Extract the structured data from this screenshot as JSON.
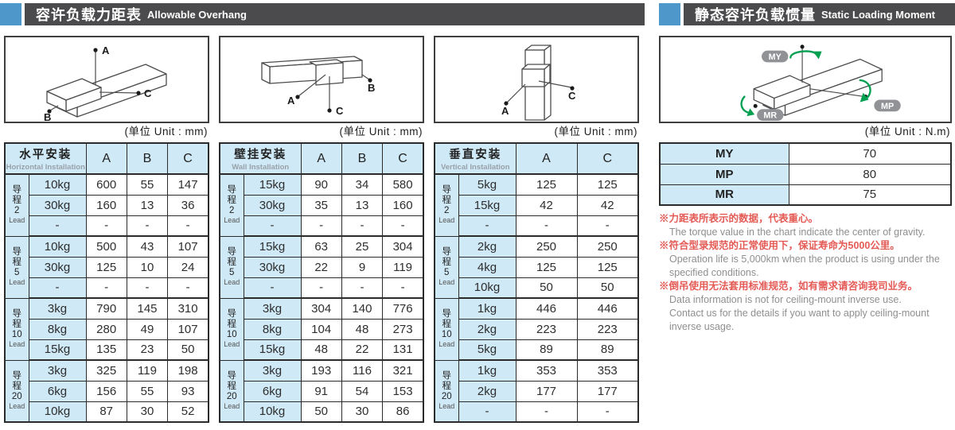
{
  "colors": {
    "accent": "#4e97cb",
    "bardark": "#4b4b4d",
    "tableblue": "#cfe9f6",
    "borderdark": "#2b2b2b",
    "notered": "#e45a55",
    "notegray": "#8f8f8f",
    "green": "#00a050",
    "badge": "#909295"
  },
  "left_header": {
    "zh": "容许负载力距表",
    "en": "Allowable Overhang"
  },
  "right_header": {
    "zh": "静态容许负载惯量",
    "en": "Static Loading Moment"
  },
  "unit_mm": "(单位 Unit : mm)",
  "unit_nm": "(单位 Unit : N.m)",
  "diagram_points": {
    "a": "A",
    "b": "B",
    "c": "C"
  },
  "moment_labels": {
    "my": "MY",
    "mp": "MP",
    "mr": "MR"
  },
  "overhang_tables": [
    {
      "key": "horizontal",
      "title_zh": "水平安装",
      "title_en": "Horizontal Installation",
      "columns": [
        "A",
        "B",
        "C"
      ],
      "groups": [
        {
          "zh_chars": [
            "导",
            "程"
          ],
          "num": "2",
          "en": "Lead",
          "rows": [
            {
              "load": "10kg",
              "values": [
                "600",
                "55",
                "147"
              ]
            },
            {
              "load": "30kg",
              "values": [
                "160",
                "13",
                "36"
              ]
            },
            {
              "load": "-",
              "values": [
                "-",
                "-",
                "-"
              ]
            }
          ]
        },
        {
          "zh_chars": [
            "导",
            "程"
          ],
          "num": "5",
          "en": "Lead",
          "rows": [
            {
              "load": "10kg",
              "values": [
                "500",
                "43",
                "107"
              ]
            },
            {
              "load": "30kg",
              "values": [
                "125",
                "10",
                "24"
              ]
            },
            {
              "load": "-",
              "values": [
                "-",
                "-",
                "-"
              ]
            }
          ]
        },
        {
          "zh_chars": [
            "导",
            "程"
          ],
          "num": "10",
          "en": "Lead",
          "rows": [
            {
              "load": "3kg",
              "values": [
                "790",
                "145",
                "310"
              ]
            },
            {
              "load": "8kg",
              "values": [
                "280",
                "49",
                "107"
              ]
            },
            {
              "load": "15kg",
              "values": [
                "135",
                "23",
                "50"
              ]
            }
          ]
        },
        {
          "zh_chars": [
            "导",
            "程"
          ],
          "num": "20",
          "en": "Lead",
          "rows": [
            {
              "load": "3kg",
              "values": [
                "325",
                "119",
                "198"
              ]
            },
            {
              "load": "6kg",
              "values": [
                "156",
                "55",
                "93"
              ]
            },
            {
              "load": "10kg",
              "values": [
                "87",
                "30",
                "52"
              ]
            }
          ]
        }
      ]
    },
    {
      "key": "wall",
      "title_zh": "壁挂安装",
      "title_en": "Wall Installation",
      "columns": [
        "A",
        "B",
        "C"
      ],
      "groups": [
        {
          "zh_chars": [
            "导",
            "程"
          ],
          "num": "2",
          "en": "Lead",
          "rows": [
            {
              "load": "15kg",
              "values": [
                "90",
                "34",
                "580"
              ]
            },
            {
              "load": "30kg",
              "values": [
                "35",
                "13",
                "160"
              ]
            },
            {
              "load": "-",
              "values": [
                "-",
                "-",
                "-"
              ]
            }
          ]
        },
        {
          "zh_chars": [
            "导",
            "程"
          ],
          "num": "5",
          "en": "Lead",
          "rows": [
            {
              "load": "15kg",
              "values": [
                "63",
                "25",
                "304"
              ]
            },
            {
              "load": "30kg",
              "values": [
                "22",
                "9",
                "119"
              ]
            },
            {
              "load": "-",
              "values": [
                "-",
                "-",
                "-"
              ]
            }
          ]
        },
        {
          "zh_chars": [
            "导",
            "程"
          ],
          "num": "10",
          "en": "Lead",
          "rows": [
            {
              "load": "3kg",
              "values": [
                "304",
                "140",
                "776"
              ]
            },
            {
              "load": "8kg",
              "values": [
                "104",
                "48",
                "273"
              ]
            },
            {
              "load": "15kg",
              "values": [
                "48",
                "22",
                "131"
              ]
            }
          ]
        },
        {
          "zh_chars": [
            "导",
            "程"
          ],
          "num": "20",
          "en": "Lead",
          "rows": [
            {
              "load": "3kg",
              "values": [
                "193",
                "116",
                "321"
              ]
            },
            {
              "load": "6kg",
              "values": [
                "91",
                "54",
                "153"
              ]
            },
            {
              "load": "10kg",
              "values": [
                "50",
                "30",
                "86"
              ]
            }
          ]
        }
      ]
    },
    {
      "key": "vertical",
      "title_zh": "垂直安装",
      "title_en": "Vertical Installation",
      "columns": [
        "A",
        "C"
      ],
      "groups": [
        {
          "zh_chars": [
            "导",
            "程"
          ],
          "num": "2",
          "en": "Lead",
          "rows": [
            {
              "load": "5kg",
              "values": [
                "125",
                "125"
              ]
            },
            {
              "load": "15kg",
              "values": [
                "42",
                "42"
              ]
            },
            {
              "load": "-",
              "values": [
                "-",
                "-"
              ]
            }
          ]
        },
        {
          "zh_chars": [
            "导",
            "程"
          ],
          "num": "5",
          "en": "Lead",
          "rows": [
            {
              "load": "2kg",
              "values": [
                "250",
                "250"
              ]
            },
            {
              "load": "4kg",
              "values": [
                "125",
                "125"
              ]
            },
            {
              "load": "10kg",
              "values": [
                "50",
                "50"
              ]
            }
          ]
        },
        {
          "zh_chars": [
            "导",
            "程"
          ],
          "num": "10",
          "en": "Lead",
          "rows": [
            {
              "load": "1kg",
              "values": [
                "446",
                "446"
              ]
            },
            {
              "load": "2kg",
              "values": [
                "223",
                "223"
              ]
            },
            {
              "load": "5kg",
              "values": [
                "89",
                "89"
              ]
            }
          ]
        },
        {
          "zh_chars": [
            "导",
            "程"
          ],
          "num": "20",
          "en": "Lead",
          "rows": [
            {
              "load": "1kg",
              "values": [
                "353",
                "353"
              ]
            },
            {
              "load": "2kg",
              "values": [
                "177",
                "177"
              ]
            },
            {
              "load": "-",
              "values": [
                "-",
                "-"
              ]
            }
          ]
        }
      ]
    }
  ],
  "moment_table": {
    "rows": [
      {
        "label": "MY",
        "value": "70"
      },
      {
        "label": "MP",
        "value": "80"
      },
      {
        "label": "MR",
        "value": "75"
      }
    ]
  },
  "notes": [
    {
      "zh": "※力距表所表示的数据，代表重心。",
      "en": [
        "The torque value in the chart indicate the center of gravity."
      ]
    },
    {
      "zh": "※符合型录规范的正常使用下，保证寿命为5000公里。",
      "en": [
        "Operation life is 5,000km when the product is using under the",
        "specified conditions."
      ]
    },
    {
      "zh": "※倒吊使用无法套用标准规范，如有需求请咨询我司业务。",
      "en": [
        "Data information is not for ceiling-mount inverse use.",
        "Contact us for the details if you want to apply ceiling-mount",
        "inverse usage."
      ]
    }
  ]
}
